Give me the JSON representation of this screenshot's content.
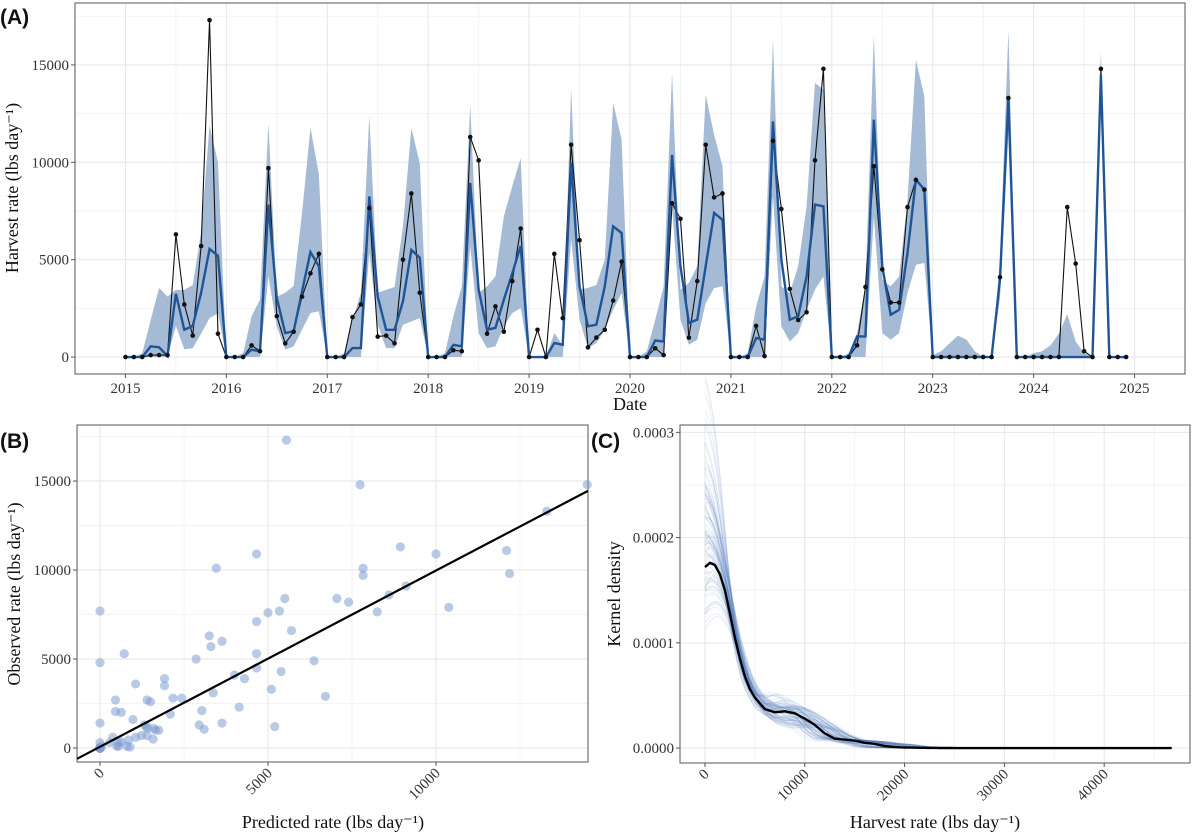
{
  "chart_data": [
    {
      "panel": "(A)",
      "type": "line",
      "xlabel": "Date",
      "ylabel": "Harvest rate (lbs day⁻¹)",
      "xlim": [
        2014.5,
        2025.5
      ],
      "ylim": [
        -870,
        18180
      ],
      "xticks": [
        2015,
        2016,
        2017,
        2018,
        2019,
        2020,
        2021,
        2022,
        2023,
        2024,
        2025
      ],
      "yticks": [
        0,
        5000,
        10000,
        15000
      ],
      "grid": true,
      "time_step": "monthly",
      "start_year": 2015,
      "colors": {
        "observed": "#111111",
        "predicted": "#1f5596",
        "interval": "#9fb6d3"
      },
      "observed": [
        0,
        0,
        0,
        100,
        100,
        100,
        6300,
        2700,
        1100,
        5700,
        17300,
        1200,
        0,
        0,
        0,
        600,
        300,
        9700,
        2100,
        700,
        1300,
        3100,
        4300,
        5300,
        0,
        0,
        0,
        2050,
        2700,
        7650,
        1050,
        1100,
        700,
        5000,
        8400,
        3300,
        0,
        0,
        0,
        350,
        300,
        11300,
        10100,
        1200,
        2600,
        1300,
        3900,
        6600,
        0,
        1400,
        0,
        5300,
        2000,
        10900,
        6000,
        500,
        1000,
        1400,
        2900,
        4900,
        0,
        0,
        0,
        450,
        100,
        7900,
        7100,
        1000,
        3900,
        10900,
        8200,
        8400,
        0,
        0,
        0,
        1600,
        50,
        11100,
        7600,
        3500,
        1900,
        2300,
        10100,
        14800,
        0,
        0,
        0,
        600,
        3600,
        9800,
        4500,
        2800,
        2800,
        7700,
        9100,
        8600,
        0,
        0,
        0,
        0,
        0,
        0,
        0,
        0,
        4100,
        13300,
        0,
        0,
        0,
        0,
        0,
        0,
        7700,
        4800,
        300,
        0,
        14800,
        0,
        0,
        0
      ],
      "predicted": [
        0,
        0,
        0,
        550,
        500,
        50,
        3250,
        1400,
        1600,
        3300,
        5550,
        5200,
        0,
        0,
        0,
        380,
        290,
        7830,
        3030,
        1230,
        1320,
        3370,
        5390,
        4660,
        0,
        0,
        0,
        460,
        460,
        8250,
        3100,
        1400,
        1400,
        2860,
        5500,
        5100,
        0,
        0,
        0,
        630,
        550,
        8940,
        3460,
        1400,
        1500,
        2950,
        4300,
        5700,
        0,
        0,
        0,
        720,
        630,
        10000,
        3630,
        1580,
        1660,
        3630,
        6710,
        6370,
        0,
        0,
        0,
        850,
        800,
        10380,
        4660,
        1750,
        1920,
        4660,
        7400,
        7050,
        0,
        0,
        0,
        980,
        890,
        12100,
        5000,
        1920,
        2090,
        4140,
        7830,
        7740,
        0,
        0,
        0,
        1060,
        1060,
        12190,
        4660,
        2170,
        2430,
        5340,
        9110,
        8600,
        0,
        0,
        0,
        0,
        0,
        0,
        0,
        0,
        4000,
        13300,
        0,
        0,
        0,
        0,
        0,
        0,
        0,
        0,
        0,
        0,
        14500,
        0,
        0,
        0
      ],
      "upper": [
        0,
        0,
        200,
        1900,
        3550,
        3100,
        3450,
        3450,
        3700,
        6400,
        11900,
        10000,
        0,
        0,
        200,
        2100,
        2950,
        12000,
        3100,
        3300,
        3650,
        7400,
        11760,
        9400,
        0,
        0,
        200,
        1900,
        3300,
        12400,
        3300,
        3450,
        3600,
        6700,
        11760,
        9950,
        0,
        0,
        200,
        2100,
        3630,
        12960,
        3300,
        3630,
        4140,
        7230,
        8770,
        10220,
        0,
        0,
        0,
        1230,
        600,
        13800,
        3460,
        3550,
        3700,
        5000,
        13050,
        11160,
        0,
        0,
        290,
        1920,
        3630,
        14600,
        3460,
        3800,
        4660,
        13470,
        11420,
        9800,
        0,
        0,
        200,
        2600,
        4140,
        16300,
        3630,
        3290,
        4660,
        7740,
        14080,
        13730,
        0,
        0,
        200,
        1230,
        3630,
        16560,
        3970,
        3630,
        4140,
        8080,
        15270,
        13390,
        100,
        300,
        700,
        1100,
        900,
        300,
        0,
        0,
        5000,
        16800,
        0,
        0,
        200,
        300,
        600,
        1200,
        2200,
        800,
        200,
        0,
        15700,
        0,
        0,
        0
      ],
      "lower": [
        0,
        0,
        0,
        0,
        0,
        0,
        1600,
        400,
        450,
        1200,
        2000,
        2250,
        0,
        0,
        0,
        0,
        0,
        4150,
        1570,
        380,
        550,
        1400,
        2260,
        2350,
        0,
        0,
        0,
        0,
        0,
        5350,
        1660,
        460,
        460,
        1660,
        1830,
        2000,
        0,
        0,
        0,
        0,
        0,
        5700,
        1230,
        460,
        550,
        1580,
        2260,
        2520,
        0,
        0,
        0,
        0,
        0,
        6030,
        1920,
        460,
        720,
        1400,
        2430,
        3290,
        0,
        0,
        0,
        0,
        0,
        7740,
        1920,
        630,
        890,
        2770,
        3540,
        3630,
        0,
        0,
        0,
        0,
        0,
        8250,
        1580,
        800,
        1230,
        2430,
        3460,
        4140,
        0,
        0,
        0,
        0,
        0,
        7230,
        1230,
        890,
        1230,
        3290,
        4740,
        4830,
        0,
        0,
        0,
        0,
        0,
        0,
        0,
        0,
        3000,
        11500,
        0,
        0,
        0,
        0,
        0,
        0,
        0,
        0,
        0,
        0,
        13500,
        0,
        0,
        0
      ]
    },
    {
      "panel": "(B)",
      "type": "scatter",
      "xlabel": "Predicted rate (lbs day⁻¹)",
      "ylabel": "Observed rate (lbs day⁻¹)",
      "points": "predicted vs observed monthly values from panel (A)",
      "xlim": [
        -685,
        14524
      ],
      "ylim": [
        -787,
        18150
      ],
      "xticks": [
        0,
        5000,
        10000
      ],
      "yticks": [
        0,
        5000,
        10000,
        15000
      ],
      "grid": true,
      "fit_line": {
        "slope": 0.99,
        "intercept": 70
      },
      "colors": {
        "points": "#7f9fd4",
        "line": "#000000"
      }
    },
    {
      "panel": "(C)",
      "type": "line",
      "xlabel": "Harvest rate (lbs day⁻¹)",
      "ylabel": "Kernel density",
      "xlim": [
        -2500,
        48600
      ],
      "ylim": [
        -1.42e-05,
        0.000307
      ],
      "xticks": [
        0,
        10000,
        20000,
        30000,
        40000
      ],
      "ytick_labels": [
        "0.0000",
        "0.0001",
        "0.0002",
        "0.0003"
      ],
      "yticks": [
        0,
        0.0001,
        0.0002,
        0.0003
      ],
      "grid": true,
      "colors": {
        "observed_density": "#000000",
        "posterior_draws": "#4f78bd"
      },
      "observed_density": {
        "x": [
          0,
          500,
          1000,
          1500,
          2000,
          2500,
          3000,
          3500,
          4000,
          4500,
          5000,
          6000,
          7000,
          8000,
          9000,
          10000,
          11000,
          12000,
          13000,
          14000,
          15000,
          16000,
          17000,
          18000,
          19000,
          20000,
          22000,
          25000,
          30000,
          40000,
          46800
        ],
        "y": [
          0.000172,
          0.000176,
          0.000174,
          0.000165,
          0.00015,
          0.000128,
          0.000105,
          8.5e-05,
          6.8e-05,
          5.6e-05,
          4.8e-05,
          3.7e-05,
          3.4e-05,
          3.5e-05,
          3.3e-05,
          2.8e-05,
          2.2e-05,
          1.4e-05,
          9e-06,
          8e-06,
          7e-06,
          5e-06,
          4e-06,
          2e-06,
          1e-06,
          5e-07,
          2e-07,
          0,
          0,
          0,
          0
        ]
      }
    }
  ]
}
